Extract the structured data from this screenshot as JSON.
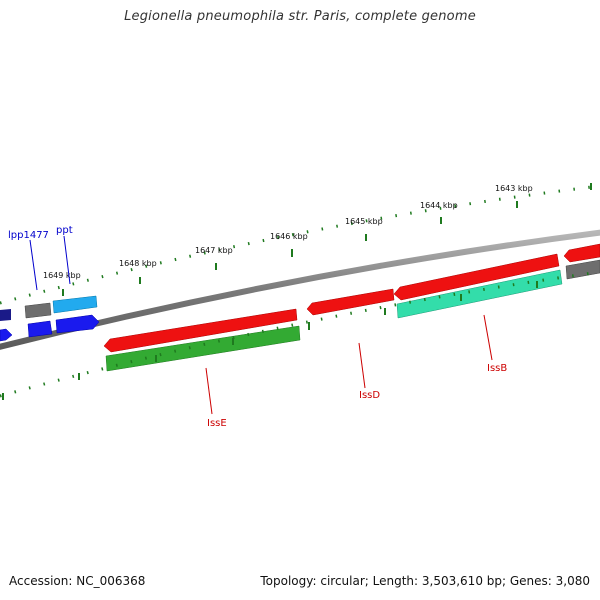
{
  "header": {
    "title": "Legionella pneumophila str. Paris, complete genome"
  },
  "footer": {
    "accession": "Accession: NC_006368",
    "summary": "Topology: circular; Length: 3,503,610 bp; Genes: 3,080"
  },
  "scale_labels": [
    "1649 kbp",
    "1648 kbp",
    "1647 kbp",
    "1646 kbp",
    "1645 kbp",
    "1644 kbp",
    "1643 kbp"
  ],
  "genes": [
    {
      "label": "lpp1477",
      "color": "#0000cc"
    },
    {
      "label": "ppt",
      "color": "#0000cc"
    },
    {
      "label": "IssE",
      "color": "#cc0000"
    },
    {
      "label": "IssD",
      "color": "#cc0000"
    },
    {
      "label": "IssB",
      "color": "#cc0000"
    }
  ],
  "colors": {
    "backbone": "#7a7a7a",
    "tick": "#1f7a1f",
    "forward_red": "#ee1111",
    "reverse_green": "#33aa33",
    "reverse_teal": "#33ddaa",
    "blue": "#1a1aee",
    "light_blue": "#22aaee",
    "gray": "#6e6e6e"
  }
}
